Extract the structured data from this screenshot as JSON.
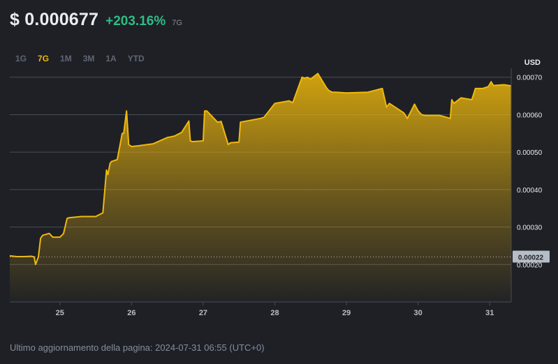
{
  "header": {
    "currency_symbol": "$",
    "price": "0.000677",
    "change": "+203.16%",
    "period": "7G",
    "price_line": "$ 0.000677"
  },
  "tabs": [
    {
      "label": "1G",
      "active": false
    },
    {
      "label": "7G",
      "active": true
    },
    {
      "label": "1M",
      "active": false
    },
    {
      "label": "3M",
      "active": false
    },
    {
      "label": "1A",
      "active": false
    },
    {
      "label": "YTD",
      "active": false
    }
  ],
  "footer": {
    "text": "Ultimo aggiornamento della pagina: 2024-07-31 06:55 (UTC+0)"
  },
  "colors": {
    "line": "#f0b90b",
    "change_positive": "#2ebd85",
    "background": "#1e2026",
    "grid": "#474d57"
  },
  "chart_data": {
    "type": "area",
    "unit_label": "USD",
    "y_ticks": [
      "0.00020",
      "0.00030",
      "0.00040",
      "0.00050",
      "0.00060",
      "0.00070"
    ],
    "ylim": [
      0.0001,
      0.00072
    ],
    "x_ticks": [
      25,
      26,
      27,
      28,
      29,
      30,
      31
    ],
    "xlim": [
      24.3,
      31.3
    ],
    "reference_value": 0.00022,
    "reference_label": "0.00022",
    "grid": true,
    "series": [
      {
        "x": [
          24.3,
          24.4,
          24.5,
          24.6,
          24.64,
          24.66,
          24.7,
          24.73,
          24.76,
          24.85,
          24.9,
          25.0,
          25.05,
          25.1,
          25.13,
          25.3,
          25.5,
          25.6,
          25.65,
          25.67,
          25.7,
          25.72,
          25.8,
          25.87,
          25.89,
          25.93,
          25.96,
          26.0,
          26.1,
          26.3,
          26.5,
          26.6,
          26.7,
          26.8,
          26.82,
          26.85,
          27.0,
          27.02,
          27.05,
          27.2,
          27.25,
          27.35,
          27.38,
          27.5,
          27.52,
          27.8,
          27.85,
          28.0,
          28.2,
          28.25,
          28.38,
          28.42,
          28.45,
          28.5,
          28.6,
          28.72,
          28.75,
          28.8,
          28.85,
          29.0,
          29.3,
          29.5,
          29.56,
          29.6,
          29.8,
          29.85,
          29.95,
          30.0,
          30.05,
          30.1,
          30.3,
          30.45,
          30.47,
          30.5,
          30.6,
          30.75,
          30.8,
          30.9,
          30.98,
          31.02,
          31.05,
          31.2,
          31.3
        ],
        "values": [
          0.000223,
          0.000221,
          0.000221,
          0.000222,
          0.00022,
          0.0002,
          0.00022,
          0.00027,
          0.000278,
          0.000283,
          0.000273,
          0.000273,
          0.000282,
          0.000323,
          0.000325,
          0.000328,
          0.000328,
          0.000338,
          0.000452,
          0.00044,
          0.00047,
          0.000475,
          0.00048,
          0.00055,
          0.00055,
          0.00061,
          0.00052,
          0.000515,
          0.000517,
          0.000522,
          0.000539,
          0.000543,
          0.000553,
          0.000583,
          0.00053,
          0.000528,
          0.00053,
          0.00061,
          0.00061,
          0.00058,
          0.000582,
          0.00052,
          0.000525,
          0.000527,
          0.00058,
          0.00059,
          0.000593,
          0.00063,
          0.000637,
          0.000632,
          0.0007,
          0.000697,
          0.0007,
          0.000695,
          0.00071,
          0.000672,
          0.000665,
          0.00066,
          0.00066,
          0.000658,
          0.00066,
          0.00067,
          0.00062,
          0.00063,
          0.000605,
          0.00059,
          0.000628,
          0.00061,
          0.0006,
          0.000598,
          0.000598,
          0.00059,
          0.00064,
          0.00063,
          0.000645,
          0.00064,
          0.00067,
          0.00067,
          0.000675,
          0.000688,
          0.000678,
          0.00068,
          0.000677
        ]
      }
    ]
  }
}
